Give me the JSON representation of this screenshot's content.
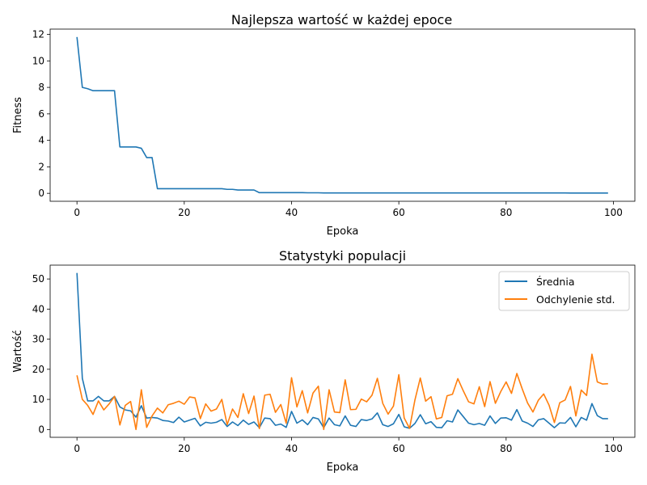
{
  "chart_data": [
    {
      "type": "line",
      "title": "Najlepsza wartość w każdej epoce",
      "xlabel": "Epoka",
      "ylabel": "Fitness",
      "xlim": [
        -5,
        104
      ],
      "ylim": [
        -0.6,
        12.4
      ],
      "xticks": [
        0,
        20,
        40,
        60,
        80,
        100
      ],
      "yticks": [
        0,
        2,
        4,
        6,
        8,
        10,
        12
      ],
      "grid": false,
      "series": [
        {
          "color": "#1f77b4",
          "x": [
            0,
            1,
            2,
            3,
            4,
            5,
            6,
            7,
            8,
            9,
            10,
            11,
            12,
            13,
            14,
            15,
            16,
            17,
            18,
            19,
            20,
            21,
            22,
            23,
            24,
            25,
            26,
            27,
            28,
            29,
            30,
            31,
            32,
            33,
            34,
            35,
            36,
            37,
            38,
            39,
            40,
            41,
            42,
            43,
            44,
            45,
            46,
            47,
            48,
            49,
            50,
            51,
            52,
            53,
            54,
            55,
            56,
            57,
            58,
            59,
            60,
            61,
            62,
            63,
            64,
            65,
            66,
            67,
            68,
            69,
            70,
            71,
            72,
            73,
            74,
            75,
            76,
            77,
            78,
            79,
            80,
            81,
            82,
            83,
            84,
            85,
            86,
            87,
            88,
            89,
            90,
            91,
            92,
            93,
            94,
            95,
            96,
            97,
            98,
            99
          ],
          "y": [
            11.8,
            8.0,
            7.9,
            7.75,
            7.75,
            7.75,
            7.75,
            7.75,
            3.5,
            3.5,
            3.5,
            3.5,
            3.4,
            2.7,
            2.7,
            0.35,
            0.35,
            0.35,
            0.35,
            0.35,
            0.35,
            0.35,
            0.35,
            0.35,
            0.35,
            0.35,
            0.35,
            0.35,
            0.3,
            0.3,
            0.25,
            0.25,
            0.25,
            0.25,
            0.05,
            0.05,
            0.05,
            0.05,
            0.05,
            0.05,
            0.05,
            0.05,
            0.05,
            0.04,
            0.04,
            0.04,
            0.03,
            0.03,
            0.03,
            0.03,
            0.03,
            0.03,
            0.03,
            0.03,
            0.03,
            0.03,
            0.03,
            0.03,
            0.03,
            0.03,
            0.03,
            0.03,
            0.03,
            0.03,
            0.03,
            0.03,
            0.03,
            0.03,
            0.03,
            0.03,
            0.03,
            0.03,
            0.03,
            0.03,
            0.03,
            0.03,
            0.03,
            0.03,
            0.03,
            0.03,
            0.03,
            0.03,
            0.03,
            0.03,
            0.03,
            0.03,
            0.03,
            0.03,
            0.03,
            0.03,
            0.03,
            0.03,
            0.02,
            0.02,
            0.02,
            0.02,
            0.02,
            0.02,
            0.02,
            0.02
          ]
        }
      ]
    },
    {
      "type": "line",
      "title": "Statystyki populacji",
      "xlabel": "Epoka",
      "ylabel": "Wartość",
      "xlim": [
        -5,
        104
      ],
      "ylim": [
        -2.6,
        54.6
      ],
      "xticks": [
        0,
        20,
        40,
        60,
        80,
        100
      ],
      "yticks": [
        0,
        10,
        20,
        30,
        40,
        50
      ],
      "grid": false,
      "legend": "top-right",
      "series": [
        {
          "name": "Średnia",
          "color": "#1f77b4",
          "x": [
            0,
            1,
            2,
            3,
            4,
            5,
            6,
            7,
            8,
            9,
            10,
            11,
            12,
            13,
            14,
            15,
            16,
            17,
            18,
            19,
            20,
            21,
            22,
            23,
            24,
            25,
            26,
            27,
            28,
            29,
            30,
            31,
            32,
            33,
            34,
            35,
            36,
            37,
            38,
            39,
            40,
            41,
            42,
            43,
            44,
            45,
            46,
            47,
            48,
            49,
            50,
            51,
            52,
            53,
            54,
            55,
            56,
            57,
            58,
            59,
            60,
            61,
            62,
            63,
            64,
            65,
            66,
            67,
            68,
            69,
            70,
            71,
            72,
            73,
            74,
            75,
            76,
            77,
            78,
            79,
            80,
            81,
            82,
            83,
            84,
            85,
            86,
            87,
            88,
            89,
            90,
            91,
            92,
            93,
            94,
            95,
            96,
            97,
            98,
            99
          ],
          "y": [
            52,
            17,
            9.5,
            9.5,
            11,
            9.5,
            9.5,
            11,
            7.5,
            6.5,
            6.2,
            4.1,
            7.9,
            3.8,
            4.0,
            3.8,
            3.0,
            2.8,
            2.3,
            4.1,
            2.5,
            3.1,
            3.7,
            1.2,
            2.4,
            2.1,
            2.4,
            3.3,
            1.0,
            2.5,
            1.3,
            3.1,
            1.7,
            2.5,
            0.6,
            3.8,
            3.6,
            1.4,
            1.8,
            0.7,
            6.0,
            2.1,
            3.2,
            1.6,
            4.0,
            3.5,
            0.6,
            3.8,
            1.6,
            1.2,
            4.5,
            1.4,
            1.0,
            3.3,
            3.0,
            3.5,
            5.5,
            1.6,
            1.0,
            1.9,
            5.0,
            0.9,
            0.4,
            2.0,
            4.9,
            1.9,
            2.6,
            0.7,
            0.6,
            2.9,
            2.5,
            6.5,
            4.3,
            2.1,
            1.6,
            2.0,
            1.4,
            4.5,
            2.0,
            3.8,
            3.9,
            3.1,
            6.6,
            2.8,
            2.1,
            1.0,
            3.2,
            3.6,
            2.1,
            0.6,
            2.2,
            2.1,
            4.0,
            0.9,
            4.0,
            3.1,
            8.6,
            4.6,
            3.6,
            3.6
          ]
        },
        {
          "name": "Odchylenie std.",
          "color": "#ff7f0e",
          "x": [
            0,
            1,
            2,
            3,
            4,
            5,
            6,
            7,
            8,
            9,
            10,
            11,
            12,
            13,
            14,
            15,
            16,
            17,
            18,
            19,
            20,
            21,
            22,
            23,
            24,
            25,
            26,
            27,
            28,
            29,
            30,
            31,
            32,
            33,
            34,
            35,
            36,
            37,
            38,
            39,
            40,
            41,
            42,
            43,
            44,
            45,
            46,
            47,
            48,
            49,
            50,
            51,
            52,
            53,
            54,
            55,
            56,
            57,
            58,
            59,
            60,
            61,
            62,
            63,
            64,
            65,
            66,
            67,
            68,
            69,
            70,
            71,
            72,
            73,
            74,
            75,
            76,
            77,
            78,
            79,
            80,
            81,
            82,
            83,
            84,
            85,
            86,
            87,
            88,
            89,
            90,
            91,
            92,
            93,
            94,
            95,
            96,
            97,
            98,
            99
          ],
          "y": [
            18,
            10,
            8,
            5,
            9.5,
            6.5,
            8.5,
            11,
            1.5,
            8,
            9.3,
            0,
            13.2,
            0.7,
            4.5,
            7.1,
            5.5,
            8.2,
            8.7,
            9.4,
            8.4,
            10.8,
            10.5,
            3.6,
            8.5,
            6.1,
            6.8,
            10,
            1.6,
            6.8,
            4.0,
            11.9,
            5.3,
            11.1,
            0.3,
            11.4,
            11.7,
            5.7,
            8.3,
            2.1,
            17.2,
            7.5,
            12.9,
            5.5,
            12.1,
            14.4,
            0.0,
            13.2,
            5.8,
            5.6,
            16.5,
            6.6,
            6.7,
            10.1,
            9.2,
            11.4,
            17,
            8.7,
            5.1,
            7.8,
            18.2,
            3.8,
            0.4,
            9.8,
            17.1,
            9.4,
            10.9,
            3.5,
            4.0,
            11.2,
            11.7,
            16.9,
            12.9,
            9.2,
            8.5,
            14.2,
            7.6,
            15.9,
            8.7,
            12.6,
            15.8,
            12,
            18.6,
            13.5,
            8.8,
            5.8,
            9.7,
            11.8,
            8.1,
            2.3,
            8.9,
            9.8,
            14.3,
            4.5,
            13.1,
            11.3,
            25,
            15.8,
            15.1,
            15.2
          ]
        }
      ]
    }
  ]
}
